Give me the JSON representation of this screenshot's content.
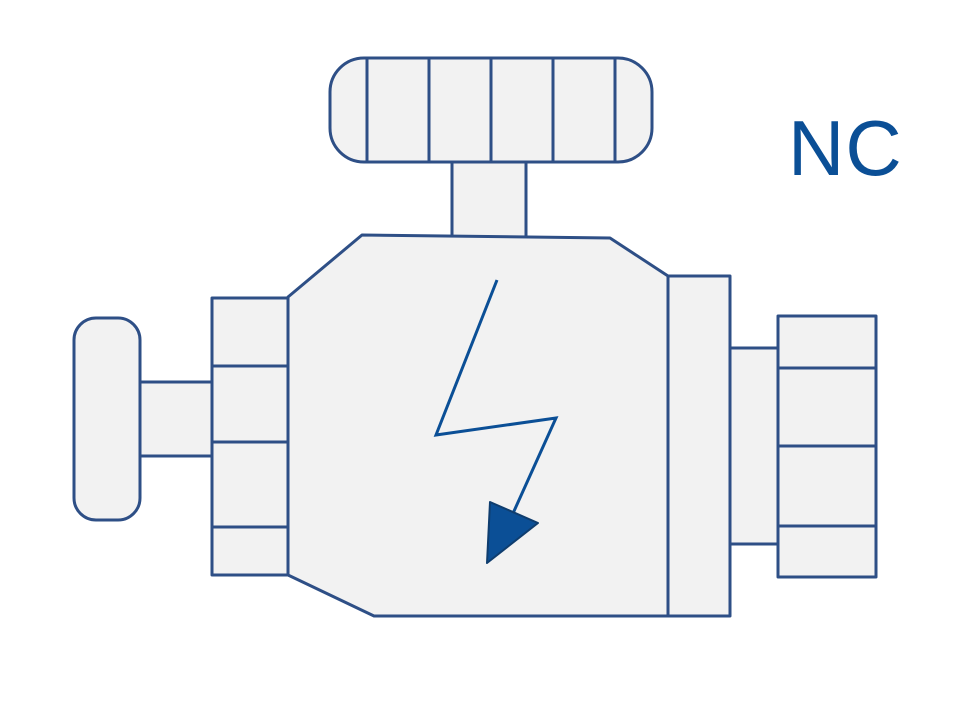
{
  "label": {
    "text": "NC"
  },
  "colors": {
    "outline": "#2e4f86",
    "fill": "#f2f2f2",
    "symbol": "#0b4f96",
    "label": "#0b4f96"
  },
  "icons": [
    "handwheel-icon",
    "side-knob-icon",
    "lightning-icon",
    "arrow-head-icon"
  ]
}
